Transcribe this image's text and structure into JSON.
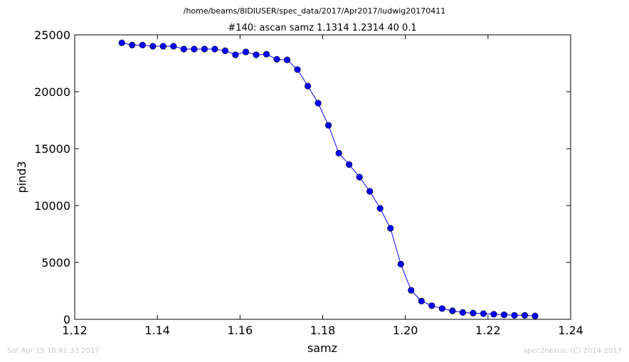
{
  "footer": {
    "timestamp": "Sat Apr 15 18:41:33 2017",
    "credit": "spec2nexus, (C) 2014-2017"
  },
  "chart_data": {
    "type": "line",
    "title": "#140: ascan  samz 1.1314 1.2314  40 0.1",
    "subtitle": "/home/beams/8IDIUSER/spec_data/2017/Apr2017/ludwig20170411",
    "xlabel": "samz",
    "ylabel": "pind3",
    "xlim": [
      1.12,
      1.24
    ],
    "ylim": [
      0,
      25000
    ],
    "xticks": [
      "1.12",
      "1.14",
      "1.16",
      "1.18",
      "1.20",
      "1.22",
      "1.24"
    ],
    "yticks": [
      "0",
      "5000",
      "10000",
      "15000",
      "20000",
      "25000"
    ],
    "grid": false,
    "color": "#0000ff",
    "marker": "circle",
    "x": [
      1.1314,
      1.1339,
      1.1364,
      1.1389,
      1.1414,
      1.1439,
      1.1464,
      1.1489,
      1.1514,
      1.1539,
      1.1564,
      1.1589,
      1.1614,
      1.1639,
      1.1664,
      1.1689,
      1.1714,
      1.1739,
      1.1764,
      1.1789,
      1.1814,
      1.1839,
      1.1864,
      1.1889,
      1.1914,
      1.1939,
      1.1964,
      1.1989,
      1.2014,
      1.2039,
      1.2064,
      1.2089,
      1.2114,
      1.2139,
      1.2164,
      1.2189,
      1.2214,
      1.2239,
      1.2264,
      1.2289,
      1.2314
    ],
    "y": [
      24300,
      24100,
      24100,
      24000,
      24000,
      24000,
      23750,
      23750,
      23750,
      23750,
      23600,
      23250,
      23500,
      23250,
      23300,
      22850,
      22800,
      21950,
      20500,
      19000,
      17050,
      14600,
      13600,
      12500,
      11250,
      9750,
      8000,
      4850,
      2550,
      1600,
      1200,
      950,
      750,
      600,
      550,
      500,
      450,
      400,
      350,
      350,
      300
    ]
  }
}
